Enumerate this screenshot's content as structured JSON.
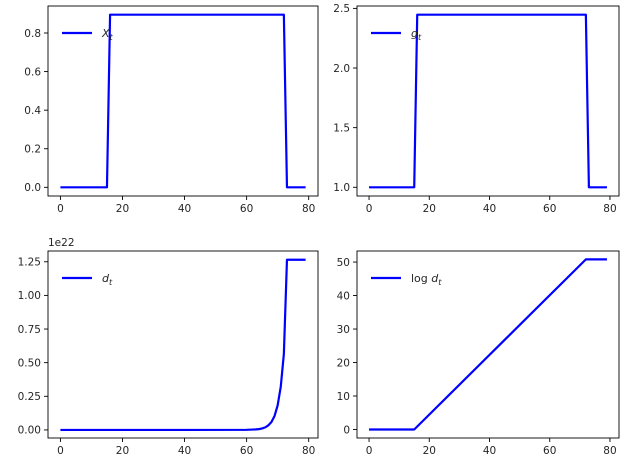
{
  "figure": {
    "background": "#ffffff",
    "line_color": "#0000ff"
  },
  "chart_data": [
    {
      "id": "x",
      "type": "line",
      "title": "",
      "xlabel": "",
      "ylabel": "",
      "xlim": [
        -4,
        83
      ],
      "ylim": [
        -0.045,
        0.94
      ],
      "xticks": [
        0,
        20,
        40,
        60,
        80
      ],
      "yticks": [
        0.0,
        0.2,
        0.4,
        0.6,
        0.8
      ],
      "ytick_labels": [
        "0.0",
        "0.2",
        "0.4",
        "0.6",
        "0.8"
      ],
      "offset_text": "",
      "legend_placement": "upper left",
      "grid": false,
      "series": [
        {
          "name": "X_t",
          "legend_label": "X",
          "legend_sub": "t",
          "legend_italic": true,
          "x": [
            0,
            15,
            16,
            72,
            73,
            79
          ],
          "y": [
            0.0,
            0.0,
            0.895,
            0.895,
            0.0,
            0.0
          ]
        }
      ]
    },
    {
      "id": "g",
      "type": "line",
      "title": "",
      "xlabel": "",
      "ylabel": "",
      "xlim": [
        -4,
        83
      ],
      "ylim": [
        0.927,
        2.52
      ],
      "xticks": [
        0,
        20,
        40,
        60,
        80
      ],
      "yticks": [
        1.0,
        1.5,
        2.0,
        2.5
      ],
      "ytick_labels": [
        "1.0",
        "1.5",
        "2.0",
        "2.5"
      ],
      "offset_text": "",
      "legend_placement": "upper left",
      "grid": false,
      "series": [
        {
          "name": "g_t",
          "legend_label": "g",
          "legend_sub": "t",
          "legend_italic": true,
          "x": [
            0,
            15,
            16,
            72,
            73,
            79
          ],
          "y": [
            1.0,
            1.0,
            2.447,
            2.447,
            1.0,
            1.0
          ]
        }
      ]
    },
    {
      "id": "d",
      "type": "line",
      "title": "",
      "xlabel": "",
      "ylabel": "",
      "xlim": [
        -4,
        83
      ],
      "ylim": [
        -0.06,
        1.33
      ],
      "xticks": [
        0,
        20,
        40,
        60,
        80
      ],
      "yticks": [
        0.0,
        0.25,
        0.5,
        0.75,
        1.0,
        1.25
      ],
      "ytick_labels": [
        "0.00",
        "0.25",
        "0.50",
        "0.75",
        "1.00",
        "1.25"
      ],
      "offset_text": "1e22",
      "legend_placement": "upper left",
      "grid": false,
      "series": [
        {
          "name": "d_t",
          "legend_label": "d",
          "legend_sub": "t",
          "legend_italic": true,
          "x": [
            0,
            15,
            40,
            60,
            63,
            64,
            65,
            66,
            67,
            68,
            69,
            70,
            71,
            72,
            73,
            79
          ],
          "y": [
            0,
            0,
            0,
            0.001,
            0.004,
            0.006,
            0.011,
            0.019,
            0.034,
            0.059,
            0.104,
            0.183,
            0.321,
            0.565,
            1.265,
            1.265
          ]
        }
      ]
    },
    {
      "id": "logd",
      "type": "line",
      "title": "",
      "xlabel": "",
      "ylabel": "",
      "xlim": [
        -4,
        83
      ],
      "ylim": [
        -2.54,
        53.3
      ],
      "xticks": [
        0,
        20,
        40,
        60,
        80
      ],
      "yticks": [
        0,
        10,
        20,
        30,
        40,
        50
      ],
      "ytick_labels": [
        "0",
        "10",
        "20",
        "30",
        "40",
        "50"
      ],
      "offset_text": "",
      "legend_placement": "upper left",
      "grid": false,
      "series": [
        {
          "name": "log d_t",
          "legend_label": "log d",
          "legend_sub": "t",
          "legend_italic": false,
          "x": [
            0,
            15,
            72,
            79
          ],
          "y": [
            0.0,
            0.0,
            50.8,
            50.8
          ]
        }
      ]
    }
  ]
}
